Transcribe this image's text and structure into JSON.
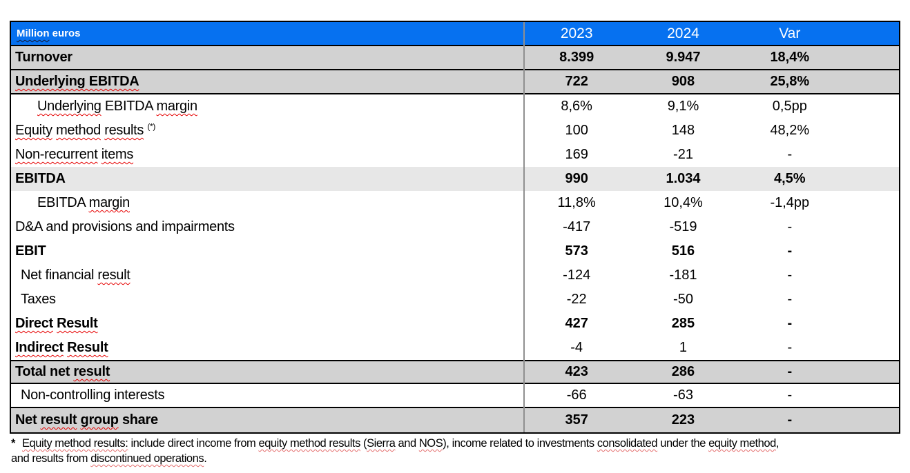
{
  "colors": {
    "header_blue": "#0671F0",
    "row_gray": "#D2D2D2",
    "row_light_gray": "#E7E7E7",
    "border_black": "#000000",
    "divider_gray": "#8F8F8F",
    "squiggle_red": "#E60000",
    "header_text": "#FFFFFF"
  },
  "header": {
    "label": "Million euros",
    "label_parts": [
      {
        "t": "Million",
        "w": "dark"
      },
      {
        "t": " euros"
      }
    ],
    "columns": [
      "2023",
      "2024",
      "Var"
    ]
  },
  "rows": [
    {
      "id": "turnover",
      "label": "Turnover",
      "label_parts": [
        {
          "t": "Turnover"
        }
      ],
      "values": [
        "8.399",
        "9.947",
        "18,4%"
      ],
      "lb": true,
      "vb": true,
      "bg": "a",
      "bb": true,
      "indent": 6
    },
    {
      "id": "underlying-ebitda",
      "label": "Underlying EBITDA",
      "label_parts": [
        {
          "t": "Underlying EBITDA",
          "w": "red"
        }
      ],
      "values": [
        "722",
        "908",
        "25,8%"
      ],
      "lb": true,
      "vb": true,
      "bg": "a",
      "bb": true,
      "indent": 6
    },
    {
      "id": "underlying-ebitda-margin",
      "label": "Underlying EBITDA margin",
      "label_parts": [
        {
          "t": "Underlying",
          "w": "red"
        },
        {
          "t": " EBITDA "
        },
        {
          "t": "margin",
          "w": "red"
        }
      ],
      "values": [
        "8,6%",
        "9,1%",
        "0,5pp"
      ],
      "indent": 38
    },
    {
      "id": "equity-method-results",
      "label": "Equity method results (*)",
      "label_parts": [
        {
          "t": "Equity",
          "w": "red"
        },
        {
          "t": " "
        },
        {
          "t": "method",
          "w": "red"
        },
        {
          "t": " "
        },
        {
          "t": "results",
          "w": "red"
        },
        {
          "t": " "
        },
        {
          "t": "(*)",
          "sup": true
        }
      ],
      "values": [
        "100",
        "148",
        "48,2%"
      ],
      "indent": 6
    },
    {
      "id": "non-recurrent-items",
      "label": "Non-recurrent items",
      "label_parts": [
        {
          "t": "Non-recurrent",
          "w": "red"
        },
        {
          "t": " "
        },
        {
          "t": "items",
          "w": "red"
        }
      ],
      "values": [
        "169",
        "-21",
        "-"
      ],
      "indent": 6
    },
    {
      "id": "ebitda",
      "label": "EBITDA",
      "label_parts": [
        {
          "t": "EBITDA"
        }
      ],
      "values": [
        "990",
        "1.034",
        "4,5%"
      ],
      "lb": true,
      "vb": true,
      "bg": "b",
      "indent": 6
    },
    {
      "id": "ebitda-margin",
      "label": "EBITDA margin",
      "label_parts": [
        {
          "t": "EBITDA "
        },
        {
          "t": "margin",
          "w": "red"
        }
      ],
      "values": [
        "11,8%",
        "10,4%",
        "-1,4pp"
      ],
      "indent": 38
    },
    {
      "id": "da-provisions-impairments",
      "label": "D&A and provisions and impairments",
      "label_parts": [
        {
          "t": "D&A and provisions and impairments"
        }
      ],
      "values": [
        "-417",
        "-519",
        "-"
      ],
      "indent": 6
    },
    {
      "id": "ebit",
      "label": "EBIT",
      "label_parts": [
        {
          "t": "EBIT"
        }
      ],
      "values": [
        "573",
        "516",
        "-"
      ],
      "lb": true,
      "vb": true,
      "indent": 6
    },
    {
      "id": "net-financial-result",
      "label": "Net financial result",
      "label_parts": [
        {
          "t": "Net financial "
        },
        {
          "t": "result",
          "w": "red"
        }
      ],
      "values": [
        "-124",
        "-181",
        "-"
      ],
      "indent": 14
    },
    {
      "id": "taxes",
      "label": "Taxes",
      "label_parts": [
        {
          "t": "Taxes"
        }
      ],
      "values": [
        "-22",
        "-50",
        "-"
      ],
      "indent": 14
    },
    {
      "id": "direct-result",
      "label": "Direct Result",
      "label_parts": [
        {
          "t": "Direct",
          "w": "red"
        },
        {
          "t": " "
        },
        {
          "t": "Result",
          "w": "red"
        }
      ],
      "values": [
        "427",
        "285",
        "-"
      ],
      "lb": true,
      "vb": true,
      "indent": 6
    },
    {
      "id": "indirect-result",
      "label": "Indirect Result",
      "label_parts": [
        {
          "t": "Indirect",
          "w": "red"
        },
        {
          "t": " "
        },
        {
          "t": "Result",
          "w": "red"
        }
      ],
      "values": [
        "-4",
        "1",
        "-"
      ],
      "lb": true,
      "indent": 6
    },
    {
      "id": "total-net-result",
      "label": "Total net result",
      "label_parts": [
        {
          "t": "Total net "
        },
        {
          "t": "result",
          "w": "red"
        }
      ],
      "values": [
        "423",
        "286",
        "-"
      ],
      "lb": true,
      "vb": true,
      "bg": "a",
      "bt": true,
      "bb": true,
      "indent": 6
    },
    {
      "id": "non-controlling-interests",
      "label": "Non-controlling interests",
      "label_parts": [
        {
          "t": "Non-controlling interests"
        }
      ],
      "values": [
        "-66",
        "-63",
        "-"
      ],
      "bb": true,
      "indent": 14
    },
    {
      "id": "net-result-group-share",
      "label": "Net result group share",
      "label_parts": [
        {
          "t": "Net "
        },
        {
          "t": "result",
          "w": "red"
        },
        {
          "t": " "
        },
        {
          "t": "group",
          "w": "red"
        },
        {
          "t": " share"
        }
      ],
      "values": [
        "357",
        "223",
        "-"
      ],
      "lb": true,
      "vb": true,
      "bg": "a",
      "indent": 6
    }
  ],
  "footnote": {
    "marker": "*",
    "line1": "Equity method results: include direct income from equity method results (Sierra and NOS), income related to investments consolidated under the equity method,",
    "line1_parts": [
      {
        "t": "Equity method results:",
        "w": "soft"
      },
      {
        "t": " include direct income from "
      },
      {
        "t": "equity method results",
        "w": "soft"
      },
      {
        "t": " ("
      },
      {
        "t": "Sierra",
        "w": "soft"
      },
      {
        "t": " and "
      },
      {
        "t": "NOS",
        "w": "soft"
      },
      {
        "t": "), income related to investments "
      },
      {
        "t": "consolidated",
        "w": "soft"
      },
      {
        "t": " under the "
      },
      {
        "t": "equity method",
        "w": "soft"
      },
      {
        "t": ","
      }
    ],
    "line2": "and results from discontinued operations.",
    "line2_parts": [
      {
        "t": "and results from "
      },
      {
        "t": "discontinued operations",
        "w": "soft"
      },
      {
        "t": "."
      }
    ]
  }
}
